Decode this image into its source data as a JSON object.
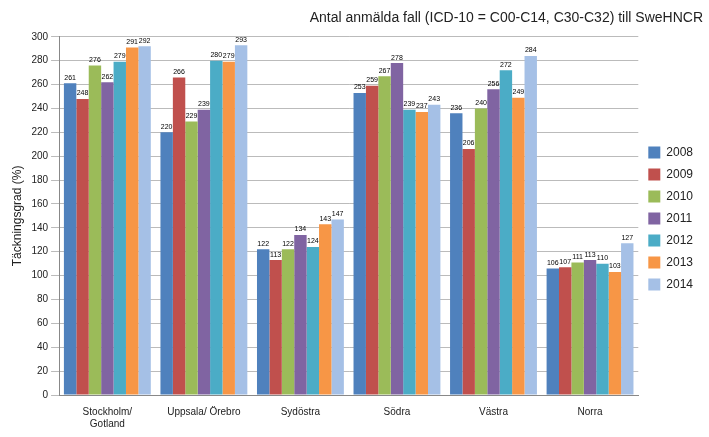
{
  "chart_data": {
    "type": "bar",
    "title": "Antal anmälda fall (ICD-10 = C00-C14, C30-C32) till SweHNCR",
    "y_label": "Täckningsgrad (%)",
    "categories": [
      "Stockholm/ Gotland",
      "Uppsala/ Örebro",
      "Sydöstra",
      "Södra",
      "Västra",
      "Norra"
    ],
    "series": [
      {
        "name": "2008",
        "color": "#4f81bd",
        "values": [
          261,
          220,
          122,
          253,
          236,
          106
        ]
      },
      {
        "name": "2009",
        "color": "#c0504d",
        "values": [
          248,
          266,
          113,
          259,
          206,
          107
        ]
      },
      {
        "name": "2010",
        "color": "#9bbb59",
        "values": [
          276,
          229,
          122,
          267,
          240,
          111
        ]
      },
      {
        "name": "2011",
        "color": "#8064a2",
        "values": [
          262,
          239,
          134,
          278,
          256,
          113
        ]
      },
      {
        "name": "2012",
        "color": "#4bacc6",
        "values": [
          279,
          280,
          124,
          239,
          272,
          110
        ]
      },
      {
        "name": "2013",
        "color": "#f79646",
        "values": [
          291,
          279,
          143,
          237,
          249,
          103
        ]
      },
      {
        "name": "2014",
        "color": "#a5c0e6",
        "values": [
          292,
          293,
          147,
          243,
          284,
          127
        ]
      }
    ],
    "ylim": [
      0,
      300
    ],
    "yticks": [
      0,
      20,
      40,
      60,
      80,
      100,
      120,
      140,
      160,
      180,
      200,
      220,
      240,
      260,
      280,
      300
    ],
    "grid": true,
    "legend": "right",
    "data_labels": true
  }
}
